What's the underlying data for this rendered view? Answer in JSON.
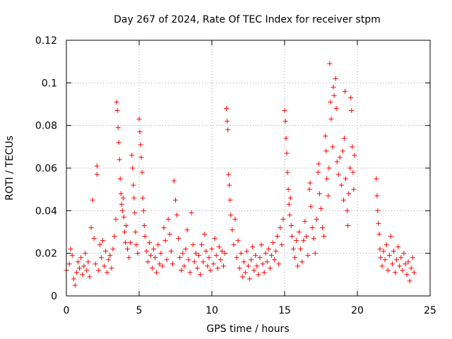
{
  "chart_data": {
    "type": "scatter",
    "title": "Day 267 of 2024, Rate Of TEC Index for receiver stpm",
    "xlabel": "GPS time / hours",
    "ylabel": "ROTI / TECUs",
    "xlim": [
      0,
      25
    ],
    "ylim": [
      0,
      0.12
    ],
    "x_ticks": [
      0,
      5,
      10,
      15,
      20,
      25
    ],
    "x_tick_labels": [
      "0",
      "5",
      "10",
      "15",
      "20",
      "25"
    ],
    "y_ticks": [
      0,
      0.02,
      0.04,
      0.06,
      0.08,
      0.1,
      0.12
    ],
    "y_tick_labels": [
      "0",
      "0.02",
      "0.04",
      "0.06",
      "0.08",
      "0.1",
      "0.12"
    ],
    "grid": true,
    "marker": "plus",
    "color": "#ff0000",
    "series": [
      {
        "name": "ROTI",
        "points": [
          [
            0.0,
            0.012
          ],
          [
            0.2,
            0.015
          ],
          [
            0.3,
            0.022
          ],
          [
            0.4,
            0.019
          ],
          [
            0.5,
            0.008
          ],
          [
            0.6,
            0.005
          ],
          [
            0.7,
            0.011
          ],
          [
            0.8,
            0.016
          ],
          [
            0.9,
            0.013
          ],
          [
            1.0,
            0.018
          ],
          [
            1.1,
            0.01
          ],
          [
            1.2,
            0.014
          ],
          [
            1.3,
            0.02
          ],
          [
            1.4,
            0.012
          ],
          [
            1.5,
            0.016
          ],
          [
            1.6,
            0.009
          ],
          [
            1.7,
            0.032
          ],
          [
            1.8,
            0.045
          ],
          [
            1.9,
            0.027
          ],
          [
            2.0,
            0.015
          ],
          [
            2.1,
            0.061
          ],
          [
            2.1,
            0.057
          ],
          [
            2.2,
            0.012
          ],
          [
            2.3,
            0.024
          ],
          [
            2.4,
            0.018
          ],
          [
            2.5,
            0.026
          ],
          [
            2.6,
            0.014
          ],
          [
            2.7,
            0.021
          ],
          [
            2.8,
            0.011
          ],
          [
            2.9,
            0.017
          ],
          [
            3.0,
            0.019
          ],
          [
            3.1,
            0.013
          ],
          [
            3.2,
            0.022
          ],
          [
            3.3,
            0.028
          ],
          [
            3.4,
            0.036
          ],
          [
            3.45,
            0.091
          ],
          [
            3.5,
            0.087
          ],
          [
            3.55,
            0.079
          ],
          [
            3.6,
            0.072
          ],
          [
            3.65,
            0.064
          ],
          [
            3.7,
            0.055
          ],
          [
            3.75,
            0.048
          ],
          [
            3.8,
            0.043
          ],
          [
            3.85,
            0.04
          ],
          [
            3.9,
            0.046
          ],
          [
            3.95,
            0.037
          ],
          [
            4.0,
            0.03
          ],
          [
            4.05,
            0.025
          ],
          [
            4.1,
            0.033
          ],
          [
            4.2,
            0.022
          ],
          [
            4.3,
            0.018
          ],
          [
            4.4,
            0.025
          ],
          [
            4.5,
            0.066
          ],
          [
            4.55,
            0.06
          ],
          [
            4.6,
            0.052
          ],
          [
            4.65,
            0.046
          ],
          [
            4.7,
            0.039
          ],
          [
            4.75,
            0.03
          ],
          [
            4.8,
            0.024
          ],
          [
            4.9,
            0.02
          ],
          [
            5.0,
            0.083
          ],
          [
            5.05,
            0.077
          ],
          [
            5.1,
            0.071
          ],
          [
            5.15,
            0.065
          ],
          [
            5.2,
            0.058
          ],
          [
            5.25,
            0.046
          ],
          [
            5.3,
            0.04
          ],
          [
            5.35,
            0.033
          ],
          [
            5.4,
            0.028
          ],
          [
            5.5,
            0.021
          ],
          [
            5.6,
            0.016
          ],
          [
            5.7,
            0.025
          ],
          [
            5.8,
            0.019
          ],
          [
            5.9,
            0.013
          ],
          [
            6.0,
            0.022
          ],
          [
            6.1,
            0.018
          ],
          [
            6.2,
            0.011
          ],
          [
            6.3,
            0.024
          ],
          [
            6.4,
            0.015
          ],
          [
            6.5,
            0.02
          ],
          [
            6.6,
            0.014
          ],
          [
            6.7,
            0.032
          ],
          [
            6.8,
            0.026
          ],
          [
            6.9,
            0.017
          ],
          [
            7.0,
            0.036
          ],
          [
            7.1,
            0.029
          ],
          [
            7.2,
            0.021
          ],
          [
            7.3,
            0.015
          ],
          [
            7.4,
            0.054
          ],
          [
            7.5,
            0.045
          ],
          [
            7.6,
            0.038
          ],
          [
            7.7,
            0.027
          ],
          [
            7.8,
            0.018
          ],
          [
            7.9,
            0.012
          ],
          [
            8.0,
            0.02
          ],
          [
            8.1,
            0.014
          ],
          [
            8.2,
            0.022
          ],
          [
            8.3,
            0.031
          ],
          [
            8.4,
            0.017
          ],
          [
            8.5,
            0.011
          ],
          [
            8.6,
            0.039
          ],
          [
            8.7,
            0.024
          ],
          [
            8.8,
            0.016
          ],
          [
            8.9,
            0.02
          ],
          [
            9.0,
            0.013
          ],
          [
            9.1,
            0.019
          ],
          [
            9.2,
            0.01
          ],
          [
            9.3,
            0.024
          ],
          [
            9.4,
            0.016
          ],
          [
            9.5,
            0.029
          ],
          [
            9.6,
            0.021
          ],
          [
            9.7,
            0.014
          ],
          [
            9.8,
            0.018
          ],
          [
            9.9,
            0.012
          ],
          [
            10.0,
            0.022
          ],
          [
            10.1,
            0.015
          ],
          [
            10.2,
            0.027
          ],
          [
            10.3,
            0.019
          ],
          [
            10.4,
            0.013
          ],
          [
            10.5,
            0.023
          ],
          [
            10.6,
            0.017
          ],
          [
            10.7,
            0.021
          ],
          [
            10.8,
            0.014
          ],
          [
            10.9,
            0.02
          ],
          [
            11.0,
            0.088
          ],
          [
            11.05,
            0.082
          ],
          [
            11.1,
            0.078
          ],
          [
            11.15,
            0.057
          ],
          [
            11.2,
            0.052
          ],
          [
            11.25,
            0.045
          ],
          [
            11.3,
            0.038
          ],
          [
            11.4,
            0.031
          ],
          [
            11.5,
            0.024
          ],
          [
            11.6,
            0.036
          ],
          [
            11.7,
            0.018
          ],
          [
            11.8,
            0.026
          ],
          [
            11.9,
            0.013
          ],
          [
            12.0,
            0.02
          ],
          [
            12.1,
            0.009
          ],
          [
            12.2,
            0.016
          ],
          [
            12.3,
            0.011
          ],
          [
            12.4,
            0.021
          ],
          [
            12.5,
            0.014
          ],
          [
            12.6,
            0.008
          ],
          [
            12.7,
            0.017
          ],
          [
            12.8,
            0.023
          ],
          [
            12.9,
            0.012
          ],
          [
            13.0,
            0.019
          ],
          [
            13.1,
            0.014
          ],
          [
            13.2,
            0.01
          ],
          [
            13.3,
            0.018
          ],
          [
            13.4,
            0.024
          ],
          [
            13.5,
            0.015
          ],
          [
            13.6,
            0.011
          ],
          [
            13.7,
            0.02
          ],
          [
            13.8,
            0.016
          ],
          [
            13.9,
            0.022
          ],
          [
            14.0,
            0.013
          ],
          [
            14.1,
            0.019
          ],
          [
            14.2,
            0.025
          ],
          [
            14.3,
            0.017
          ],
          [
            14.4,
            0.021
          ],
          [
            14.5,
            0.028
          ],
          [
            14.6,
            0.015
          ],
          [
            14.7,
            0.032
          ],
          [
            14.8,
            0.024
          ],
          [
            14.9,
            0.036
          ],
          [
            15.0,
            0.087
          ],
          [
            15.05,
            0.082
          ],
          [
            15.1,
            0.074
          ],
          [
            15.15,
            0.067
          ],
          [
            15.2,
            0.058
          ],
          [
            15.25,
            0.05
          ],
          [
            15.3,
            0.043
          ],
          [
            15.35,
            0.038
          ],
          [
            15.4,
            0.046
          ],
          [
            15.45,
            0.033
          ],
          [
            15.5,
            0.028
          ],
          [
            15.6,
            0.022
          ],
          [
            15.7,
            0.018
          ],
          [
            15.8,
            0.026
          ],
          [
            15.9,
            0.014
          ],
          [
            16.0,
            0.03
          ],
          [
            16.1,
            0.022
          ],
          [
            16.2,
            0.016
          ],
          [
            16.3,
            0.026
          ],
          [
            16.4,
            0.035
          ],
          [
            16.5,
            0.028
          ],
          [
            16.6,
            0.019
          ],
          [
            16.7,
            0.05
          ],
          [
            16.75,
            0.053
          ],
          [
            16.8,
            0.042
          ],
          [
            16.9,
            0.032
          ],
          [
            17.0,
            0.027
          ],
          [
            17.1,
            0.02
          ],
          [
            17.2,
            0.036
          ],
          [
            17.3,
            0.058
          ],
          [
            17.35,
            0.062
          ],
          [
            17.4,
            0.048
          ],
          [
            17.5,
            0.041
          ],
          [
            17.6,
            0.032
          ],
          [
            17.7,
            0.028
          ],
          [
            17.8,
            0.075
          ],
          [
            17.85,
            0.068
          ],
          [
            17.9,
            0.055
          ],
          [
            18.0,
            0.047
          ],
          [
            18.05,
            0.06
          ],
          [
            18.1,
            0.109
          ],
          [
            18.15,
            0.091
          ],
          [
            18.2,
            0.083
          ],
          [
            18.3,
            0.07
          ],
          [
            18.35,
            0.098
          ],
          [
            18.4,
            0.094
          ],
          [
            18.5,
            0.102
          ],
          [
            18.55,
            0.088
          ],
          [
            18.6,
            0.063
          ],
          [
            18.7,
            0.057
          ],
          [
            18.8,
            0.065
          ],
          [
            18.9,
            0.052
          ],
          [
            19.0,
            0.068
          ],
          [
            19.05,
            0.045
          ],
          [
            19.1,
            0.074
          ],
          [
            19.15,
            0.096
          ],
          [
            19.2,
            0.055
          ],
          [
            19.3,
            0.04
          ],
          [
            19.35,
            0.033
          ],
          [
            19.4,
            0.048
          ],
          [
            19.5,
            0.06
          ],
          [
            19.55,
            0.093
          ],
          [
            19.6,
            0.087
          ],
          [
            19.65,
            0.07
          ],
          [
            19.7,
            0.058
          ],
          [
            19.75,
            0.05
          ],
          [
            19.8,
            0.066
          ],
          [
            21.3,
            0.055
          ],
          [
            21.35,
            0.047
          ],
          [
            21.4,
            0.04
          ],
          [
            21.45,
            0.034
          ],
          [
            21.5,
            0.029
          ],
          [
            21.55,
            0.022
          ],
          [
            21.6,
            0.018
          ],
          [
            21.7,
            0.014
          ],
          [
            21.8,
            0.021
          ],
          [
            21.9,
            0.017
          ],
          [
            22.0,
            0.024
          ],
          [
            22.1,
            0.012
          ],
          [
            22.2,
            0.019
          ],
          [
            22.3,
            0.028
          ],
          [
            22.4,
            0.015
          ],
          [
            22.5,
            0.021
          ],
          [
            22.6,
            0.011
          ],
          [
            22.7,
            0.017
          ],
          [
            22.8,
            0.023
          ],
          [
            22.9,
            0.014
          ],
          [
            23.0,
            0.018
          ],
          [
            23.1,
            0.012
          ],
          [
            23.2,
            0.02
          ],
          [
            23.3,
            0.015
          ],
          [
            23.4,
            0.01
          ],
          [
            23.5,
            0.016
          ],
          [
            23.6,
            0.007
          ],
          [
            23.7,
            0.013
          ],
          [
            23.8,
            0.018
          ],
          [
            23.9,
            0.011
          ]
        ]
      }
    ]
  }
}
